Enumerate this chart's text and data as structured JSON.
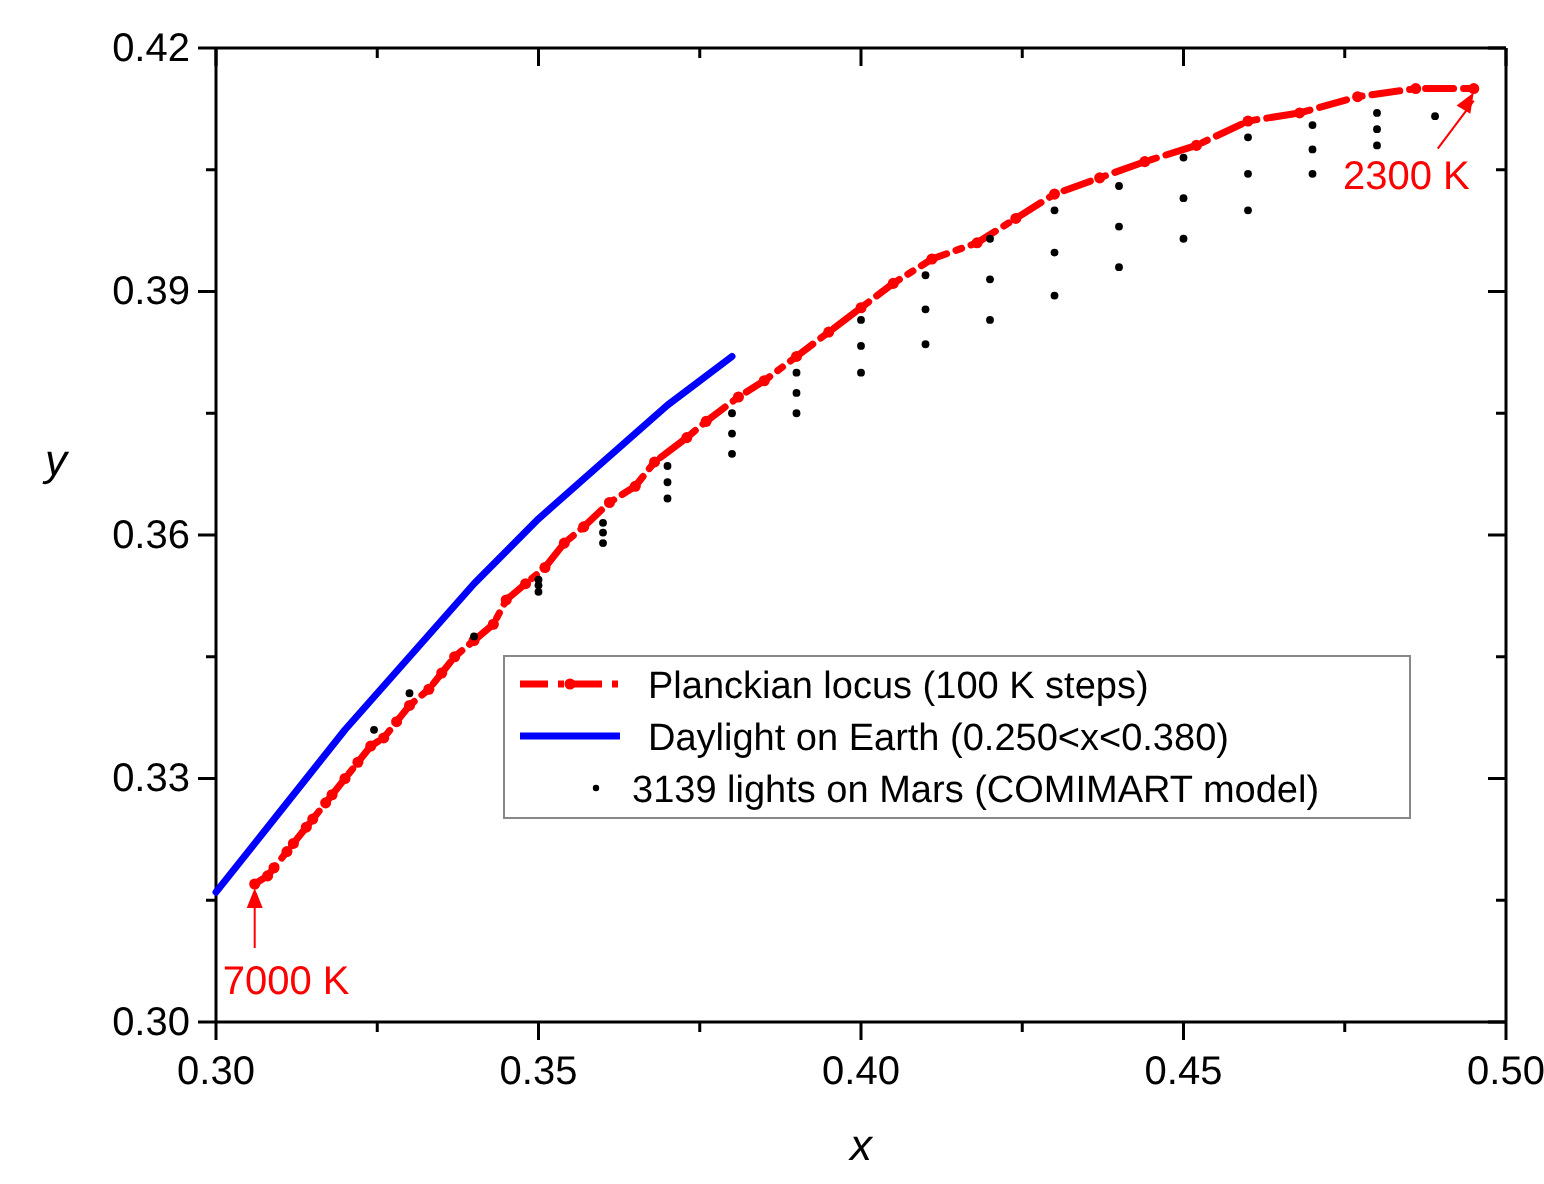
{
  "chart_data": {
    "type": "line",
    "xlabel": "x",
    "ylabel": "y",
    "xlim": [
      0.3,
      0.5
    ],
    "ylim": [
      0.3,
      0.42
    ],
    "xticks": [
      {
        "value": 0.3,
        "label": "0.30"
      },
      {
        "value": 0.325,
        "label": null
      },
      {
        "value": 0.35,
        "label": "0.35"
      },
      {
        "value": 0.375,
        "label": null
      },
      {
        "value": 0.4,
        "label": "0.40"
      },
      {
        "value": 0.425,
        "label": null
      },
      {
        "value": 0.45,
        "label": "0.45"
      },
      {
        "value": 0.475,
        "label": null
      },
      {
        "value": 0.5,
        "label": "0.50"
      }
    ],
    "yticks": [
      {
        "value": 0.3,
        "label": "0.30"
      },
      {
        "value": 0.315,
        "label": null
      },
      {
        "value": 0.33,
        "label": "0.33"
      },
      {
        "value": 0.345,
        "label": null
      },
      {
        "value": 0.36,
        "label": "0.36"
      },
      {
        "value": 0.375,
        "label": null
      },
      {
        "value": 0.39,
        "label": "0.39"
      },
      {
        "value": 0.405,
        "label": null
      },
      {
        "value": 0.42,
        "label": "0.42"
      }
    ],
    "grid": false,
    "legend": "right",
    "series": [
      {
        "name": "Planckian locus (100 K steps)",
        "color": "#ff0000",
        "marker": "circle",
        "line_style": "dashed",
        "x": [
          0.306,
          0.308,
          0.309,
          0.311,
          0.312,
          0.314,
          0.315,
          0.317,
          0.318,
          0.32,
          0.322,
          0.324,
          0.326,
          0.328,
          0.33,
          0.333,
          0.335,
          0.337,
          0.34,
          0.343,
          0.345,
          0.348,
          0.351,
          0.354,
          0.357,
          0.361,
          0.365,
          0.368,
          0.373,
          0.376,
          0.381,
          0.385,
          0.39,
          0.395,
          0.4,
          0.405,
          0.411,
          0.418,
          0.424,
          0.43,
          0.437,
          0.444,
          0.452,
          0.46,
          0.468,
          0.477,
          0.486,
          0.495
        ],
        "values": [
          0.317,
          0.318,
          0.319,
          0.321,
          0.322,
          0.324,
          0.325,
          0.327,
          0.328,
          0.33,
          0.332,
          0.334,
          0.335,
          0.337,
          0.339,
          0.341,
          0.343,
          0.345,
          0.347,
          0.349,
          0.352,
          0.354,
          0.356,
          0.359,
          0.361,
          0.364,
          0.366,
          0.369,
          0.372,
          0.374,
          0.377,
          0.379,
          0.382,
          0.385,
          0.388,
          0.391,
          0.394,
          0.396,
          0.399,
          0.402,
          0.404,
          0.406,
          0.408,
          0.411,
          0.412,
          0.414,
          0.415,
          0.415
        ]
      },
      {
        "name": "Daylight on Earth (0.250<x<0.380)",
        "color": "#0000ff",
        "line_style": "solid",
        "x": [
          0.3,
          0.31,
          0.32,
          0.33,
          0.34,
          0.35,
          0.36,
          0.37,
          0.38
        ],
        "values": [
          0.316,
          0.326,
          0.336,
          0.345,
          0.354,
          0.362,
          0.369,
          0.376,
          0.382
        ]
      },
      {
        "name": "3139 lights on Mars (COMIMART model)",
        "type": "scatter",
        "color": "#000000",
        "marker": "circle",
        "x": [
          0.3245,
          0.33,
          0.34,
          0.35,
          0.36,
          0.37,
          0.38,
          0.39,
          0.4,
          0.41,
          0.42,
          0.43,
          0.44,
          0.45,
          0.46,
          0.47,
          0.48,
          0.489,
          0.35,
          0.36,
          0.37,
          0.38,
          0.39,
          0.4,
          0.41,
          0.42,
          0.43,
          0.44,
          0.45,
          0.46,
          0.47,
          0.48,
          0.35,
          0.36,
          0.37,
          0.38,
          0.39,
          0.4,
          0.41,
          0.42,
          0.43,
          0.44,
          0.45,
          0.46,
          0.47,
          0.48
        ],
        "values": [
          0.336,
          0.3405,
          0.3475,
          0.353,
          0.359,
          0.3645,
          0.37,
          0.375,
          0.38,
          0.3835,
          0.3865,
          0.3895,
          0.393,
          0.3965,
          0.4,
          0.4045,
          0.408,
          0.4116,
          0.3545,
          0.3615,
          0.3685,
          0.375,
          0.38,
          0.3865,
          0.392,
          0.3965,
          0.4,
          0.403,
          0.4065,
          0.409,
          0.4105,
          0.412,
          0.3538,
          0.3603,
          0.3665,
          0.3725,
          0.3775,
          0.3833,
          0.3878,
          0.3915,
          0.3948,
          0.398,
          0.4015,
          0.4045,
          0.4075,
          0.41
        ]
      }
    ],
    "annotations": [
      {
        "text": "2300 K",
        "x": 0.495,
        "y": 0.415
      },
      {
        "text": "7000 K",
        "x": 0.306,
        "y": 0.317
      }
    ]
  }
}
